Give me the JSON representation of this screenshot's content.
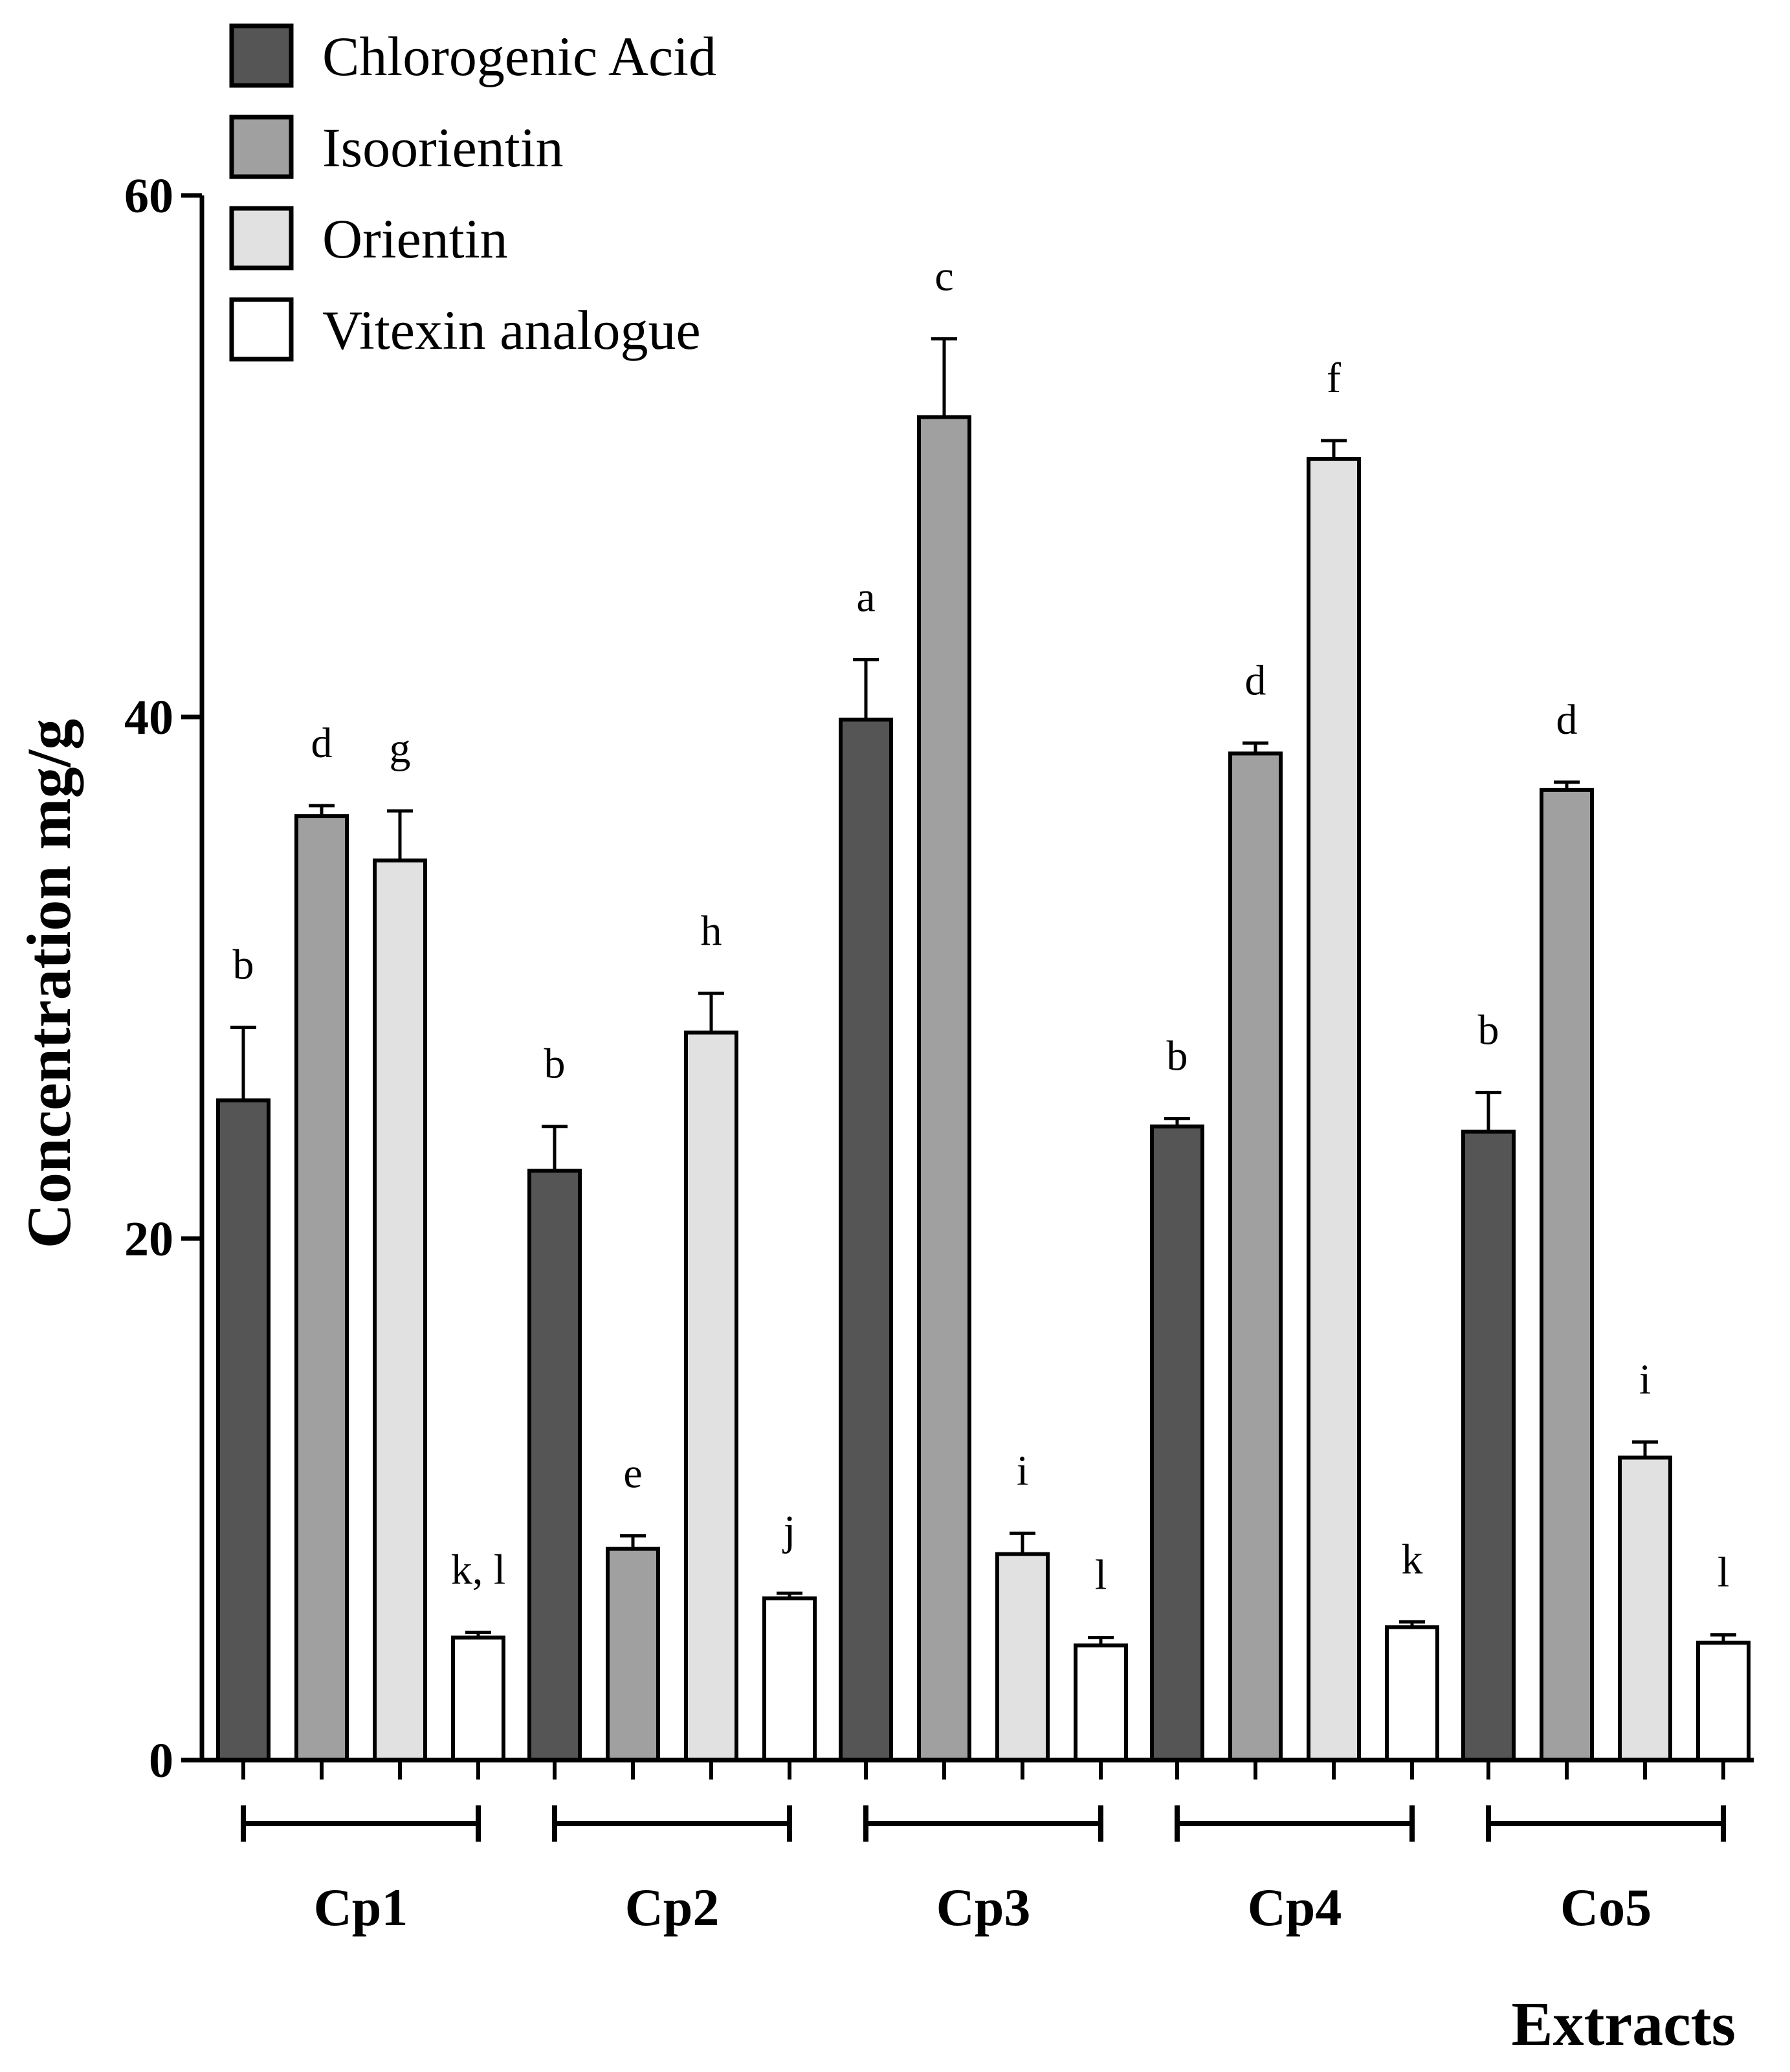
{
  "chart_data": {
    "type": "bar",
    "title": "",
    "xlabel": "Extracts",
    "ylabel": "Concentration mg/g",
    "ylim": [
      0,
      60
    ],
    "yticks": [
      0,
      20,
      40,
      60
    ],
    "yticks_text": [
      "0",
      "20",
      "40",
      "60"
    ],
    "categories": [
      "Cp1",
      "Cp2",
      "Cp3",
      "Cp4",
      "Co5"
    ],
    "legend_position": "top-left",
    "series": [
      {
        "name": "Chlorogenic Acid",
        "color": "#555555",
        "values": [
          25.3,
          22.6,
          39.9,
          24.3,
          24.1
        ],
        "errors": [
          2.8,
          1.7,
          2.3,
          0.3,
          1.5
        ],
        "labels": [
          "b",
          "b",
          "a",
          "b",
          "b"
        ]
      },
      {
        "name": "Isoorientin",
        "color": "#a0a0a0",
        "values": [
          36.2,
          8.1,
          51.5,
          38.6,
          37.2
        ],
        "errors": [
          0.4,
          0.5,
          3.0,
          0.4,
          0.3
        ],
        "labels": [
          "d",
          "e",
          "c",
          "d",
          "d"
        ]
      },
      {
        "name": "Orientin",
        "color": "#e1e1e1",
        "values": [
          34.5,
          27.9,
          7.9,
          49.9,
          11.6
        ],
        "errors": [
          1.9,
          1.5,
          0.8,
          0.7,
          0.6
        ],
        "labels": [
          "g",
          "h",
          "i",
          "f",
          "i"
        ]
      },
      {
        "name": "Vitexin analogue",
        "color": "#ffffff",
        "values": [
          4.7,
          6.2,
          4.4,
          5.1,
          4.5
        ],
        "errors": [
          0.2,
          0.2,
          0.3,
          0.2,
          0.3
        ],
        "labels": [
          "k, l",
          "j",
          "l",
          "k",
          "l"
        ]
      }
    ]
  }
}
